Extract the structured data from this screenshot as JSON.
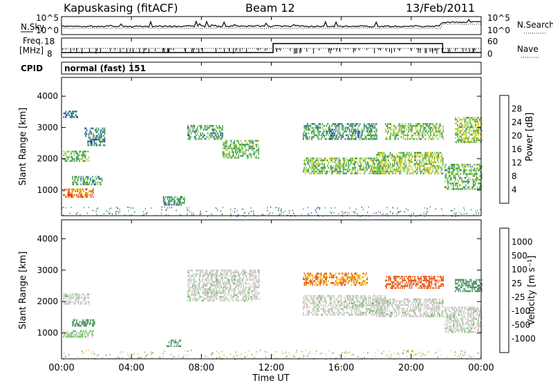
{
  "header": {
    "station": "Kapuskasing (fitACF)",
    "beam": "Beam 12",
    "date": "13/Feb/2011"
  },
  "noise_panel": {
    "left_label": "N.Sky",
    "left_ticks": [
      "10^5",
      "10^0"
    ],
    "right_label": "N.Search",
    "right_ticks": [
      "10^5",
      "10^0"
    ]
  },
  "freq_panel": {
    "left_label_line1": "Freq.",
    "left_label_line2": "[MHz]",
    "left_ticks": [
      "18",
      "8"
    ],
    "right_label": "Nave",
    "right_ticks": [
      "60",
      "0"
    ]
  },
  "cpid": {
    "label": "CPID",
    "text": "normal (fast) 151"
  },
  "power_panel": {
    "ylabel": "Slant Range [km]",
    "yticks": [
      "4000",
      "3000",
      "2000",
      "1000"
    ],
    "colorbar_label": "Power [dB]",
    "colorbar_ticks": [
      "28",
      "24",
      "20",
      "16",
      "12",
      "8",
      "4"
    ],
    "colors": [
      "#0000ff",
      "#2e47b4",
      "#3b8f7a",
      "#4ca64c",
      "#9fd84a",
      "#e6c400",
      "#f08c00",
      "#e8431d",
      "#ee0000"
    ]
  },
  "velocity_panel": {
    "ylabel": "Slant Range [km]",
    "yticks": [
      "4000",
      "3000",
      "2000",
      "1000"
    ],
    "colorbar_label": "Velocity [m s⁻¹]",
    "colorbar_ticks": [
      "1000",
      "500",
      "100",
      "25",
      "-25",
      "-100",
      "-500",
      "-1000"
    ],
    "colors": [
      "#2233cc",
      "#3a6db5",
      "#4d9466",
      "#58c64a",
      "#c8c8c0",
      "#c8c8c0",
      "#f0b400",
      "#f08a1c",
      "#ea5a18",
      "#e61414"
    ]
  },
  "xaxis": {
    "label": "Time UT",
    "ticks": [
      "00:00",
      "04:00",
      "08:00",
      "12:00",
      "16:00",
      "20:00",
      "00:00"
    ]
  },
  "chart_data": {
    "type": "heatmap",
    "x_range_hours": [
      0,
      24
    ],
    "y_range_km": [
      180,
      4600
    ],
    "power_echo_regions": [
      {
        "t": [
          0.1,
          1.6
        ],
        "r": [
          1900,
          2250
        ],
        "db": 12
      },
      {
        "t": [
          0.1,
          1.8
        ],
        "r": [
          750,
          1000
        ],
        "db": 22
      },
      {
        "t": [
          0.6,
          2.3
        ],
        "r": [
          1150,
          1400
        ],
        "db": 10
      },
      {
        "t": [
          0.1,
          0.9
        ],
        "r": [
          3300,
          3500
        ],
        "db": 6
      },
      {
        "t": [
          1.3,
          2.5
        ],
        "r": [
          2400,
          3000
        ],
        "db": 8
      },
      {
        "t": [
          5.8,
          7.0
        ],
        "r": [
          500,
          750
        ],
        "db": 10
      },
      {
        "t": [
          7.2,
          9.2
        ],
        "r": [
          2600,
          3050
        ],
        "db": 10
      },
      {
        "t": [
          9.2,
          11.3
        ],
        "r": [
          2000,
          2600
        ],
        "db": 12
      },
      {
        "t": [
          13.8,
          18.5
        ],
        "r": [
          1500,
          2000
        ],
        "db": 13
      },
      {
        "t": [
          13.8,
          18.0
        ],
        "r": [
          2600,
          3100
        ],
        "db": 10
      },
      {
        "t": [
          18.0,
          21.8
        ],
        "r": [
          1500,
          2200
        ],
        "db": 14
      },
      {
        "t": [
          18.5,
          21.8
        ],
        "r": [
          2600,
          3100
        ],
        "db": 13
      },
      {
        "t": [
          21.9,
          24.0
        ],
        "r": [
          1000,
          1800
        ],
        "db": 12
      },
      {
        "t": [
          22.5,
          24.0
        ],
        "r": [
          2500,
          3300
        ],
        "db": 14
      }
    ],
    "velocity_echo_regions": [
      {
        "t": [
          0.1,
          1.6
        ],
        "r": [
          1900,
          2250
        ],
        "v": 0
      },
      {
        "t": [
          0.1,
          1.8
        ],
        "r": [
          850,
          1050
        ],
        "v": 30
      },
      {
        "t": [
          0.6,
          1.9
        ],
        "r": [
          1200,
          1400
        ],
        "v": 150
      },
      {
        "t": [
          6.0,
          6.8
        ],
        "r": [
          550,
          750
        ],
        "v": 200
      },
      {
        "t": [
          7.2,
          11.3
        ],
        "r": [
          2000,
          3000
        ],
        "v": 0
      },
      {
        "t": [
          13.8,
          18.5
        ],
        "r": [
          1550,
          2200
        ],
        "v": 0
      },
      {
        "t": [
          13.8,
          17.5
        ],
        "r": [
          2500,
          2900
        ],
        "v": -300
      },
      {
        "t": [
          18.5,
          21.8
        ],
        "r": [
          2400,
          2800
        ],
        "v": -400
      },
      {
        "t": [
          18.0,
          21.8
        ],
        "r": [
          1500,
          2100
        ],
        "v": 0
      },
      {
        "t": [
          21.9,
          24.0
        ],
        "r": [
          1000,
          1800
        ],
        "v": 0
      },
      {
        "t": [
          22.5,
          24.0
        ],
        "r": [
          2300,
          2700
        ],
        "v": 200
      }
    ]
  }
}
